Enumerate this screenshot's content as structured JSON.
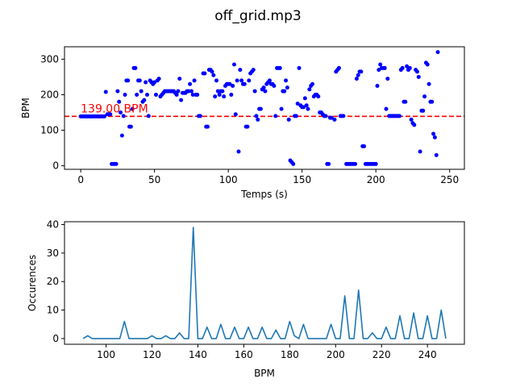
{
  "figure": {
    "title": "off_grid.mp3"
  },
  "chart_data": [
    {
      "type": "scatter",
      "xlabel": "Temps (s)",
      "ylabel": "BPM",
      "xlim": [
        -11,
        260
      ],
      "ylim": [
        -10,
        335
      ],
      "xticks": [
        0,
        50,
        100,
        150,
        200,
        250
      ],
      "yticks": [
        0,
        100,
        200,
        300
      ],
      "marker_color": "#0000ff",
      "reference_line": {
        "y": 139,
        "color": "#ff0000",
        "style": "dashed",
        "label": "139.00 BPM"
      },
      "points": [
        [
          0,
          139
        ],
        [
          1,
          139
        ],
        [
          2,
          139
        ],
        [
          3,
          139
        ],
        [
          4,
          139
        ],
        [
          5,
          139
        ],
        [
          6,
          139
        ],
        [
          7,
          139
        ],
        [
          8,
          139
        ],
        [
          9,
          139
        ],
        [
          10,
          139
        ],
        [
          11,
          139
        ],
        [
          12,
          139
        ],
        [
          13,
          139
        ],
        [
          14,
          139
        ],
        [
          15,
          139
        ],
        [
          16,
          139
        ],
        [
          17,
          208
        ],
        [
          18,
          145
        ],
        [
          19,
          145
        ],
        [
          20,
          145
        ],
        [
          21,
          5
        ],
        [
          22,
          5
        ],
        [
          23,
          5
        ],
        [
          24,
          5
        ],
        [
          25,
          210
        ],
        [
          26,
          180
        ],
        [
          27,
          150
        ],
        [
          28,
          85
        ],
        [
          29,
          140
        ],
        [
          30,
          200
        ],
        [
          31,
          240
        ],
        [
          32,
          240
        ],
        [
          33,
          110
        ],
        [
          34,
          110
        ],
        [
          35,
          160
        ],
        [
          36,
          275
        ],
        [
          37,
          275
        ],
        [
          38,
          200
        ],
        [
          39,
          240
        ],
        [
          40,
          240
        ],
        [
          41,
          210
        ],
        [
          42,
          180
        ],
        [
          43,
          185
        ],
        [
          44,
          235
        ],
        [
          45,
          200
        ],
        [
          46,
          140
        ],
        [
          47,
          240
        ],
        [
          48,
          235
        ],
        [
          49,
          230
        ],
        [
          50,
          235
        ],
        [
          51,
          200
        ],
        [
          52,
          240
        ],
        [
          53,
          245
        ],
        [
          54,
          195
        ],
        [
          55,
          200
        ],
        [
          56,
          205
        ],
        [
          57,
          210
        ],
        [
          58,
          210
        ],
        [
          59,
          210
        ],
        [
          60,
          210
        ],
        [
          61,
          210
        ],
        [
          62,
          210
        ],
        [
          63,
          210
        ],
        [
          64,
          205
        ],
        [
          65,
          200
        ],
        [
          66,
          210
        ],
        [
          67,
          245
        ],
        [
          68,
          185
        ],
        [
          69,
          205
        ],
        [
          70,
          205
        ],
        [
          71,
          205
        ],
        [
          72,
          210
        ],
        [
          73,
          210
        ],
        [
          74,
          230
        ],
        [
          75,
          210
        ],
        [
          76,
          200
        ],
        [
          77,
          240
        ],
        [
          78,
          200
        ],
        [
          79,
          200
        ],
        [
          80,
          140
        ],
        [
          81,
          140
        ],
        [
          83,
          260
        ],
        [
          84,
          260
        ],
        [
          85,
          110
        ],
        [
          86,
          110
        ],
        [
          87,
          270
        ],
        [
          88,
          270
        ],
        [
          89,
          265
        ],
        [
          90,
          255
        ],
        [
          91,
          195
        ],
        [
          92,
          240
        ],
        [
          93,
          210
        ],
        [
          94,
          200
        ],
        [
          95,
          210
        ],
        [
          96,
          210
        ],
        [
          97,
          195
        ],
        [
          98,
          225
        ],
        [
          99,
          230
        ],
        [
          100,
          230
        ],
        [
          101,
          230
        ],
        [
          102,
          200
        ],
        [
          103,
          225
        ],
        [
          104,
          285
        ],
        [
          105,
          145
        ],
        [
          106,
          240
        ],
        [
          107,
          40
        ],
        [
          108,
          270
        ],
        [
          109,
          240
        ],
        [
          110,
          230
        ],
        [
          111,
          230
        ],
        [
          112,
          110
        ],
        [
          113,
          110
        ],
        [
          114,
          240
        ],
        [
          115,
          260
        ],
        [
          116,
          265
        ],
        [
          117,
          270
        ],
        [
          118,
          210
        ],
        [
          119,
          140
        ],
        [
          120,
          130
        ],
        [
          121,
          160
        ],
        [
          122,
          160
        ],
        [
          123,
          215
        ],
        [
          124,
          220
        ],
        [
          125,
          210
        ],
        [
          126,
          230
        ],
        [
          127,
          235
        ],
        [
          128,
          240
        ],
        [
          129,
          230
        ],
        [
          130,
          230
        ],
        [
          131,
          225
        ],
        [
          132,
          140
        ],
        [
          133,
          275
        ],
        [
          134,
          275
        ],
        [
          135,
          275
        ],
        [
          136,
          160
        ],
        [
          137,
          210
        ],
        [
          138,
          210
        ],
        [
          139,
          240
        ],
        [
          140,
          220
        ],
        [
          141,
          130
        ],
        [
          142,
          15
        ],
        [
          143,
          10
        ],
        [
          144,
          5
        ],
        [
          145,
          140
        ],
        [
          146,
          140
        ],
        [
          147,
          175
        ],
        [
          148,
          275
        ],
        [
          149,
          170
        ],
        [
          150,
          165
        ],
        [
          151,
          165
        ],
        [
          152,
          190
        ],
        [
          153,
          170
        ],
        [
          154,
          160
        ],
        [
          155,
          215
        ],
        [
          156,
          225
        ],
        [
          157,
          230
        ],
        [
          158,
          195
        ],
        [
          159,
          200
        ],
        [
          160,
          200
        ],
        [
          161,
          195
        ],
        [
          162,
          150
        ],
        [
          163,
          150
        ],
        [
          164,
          145
        ],
        [
          165,
          140
        ],
        [
          166,
          140
        ],
        [
          167,
          5
        ],
        [
          168,
          5
        ],
        [
          169,
          135
        ],
        [
          170,
          135
        ],
        [
          172,
          130
        ],
        [
          173,
          265
        ],
        [
          174,
          270
        ],
        [
          175,
          275
        ],
        [
          176,
          140
        ],
        [
          177,
          140
        ],
        [
          178,
          140
        ],
        [
          180,
          5
        ],
        [
          181,
          5
        ],
        [
          182,
          5
        ],
        [
          183,
          5
        ],
        [
          184,
          5
        ],
        [
          185,
          5
        ],
        [
          186,
          5
        ],
        [
          187,
          245
        ],
        [
          188,
          255
        ],
        [
          189,
          265
        ],
        [
          190,
          265
        ],
        [
          191,
          55
        ],
        [
          192,
          55
        ],
        [
          193,
          5
        ],
        [
          194,
          5
        ],
        [
          195,
          5
        ],
        [
          196,
          5
        ],
        [
          197,
          5
        ],
        [
          198,
          5
        ],
        [
          199,
          5
        ],
        [
          200,
          5
        ],
        [
          201,
          225
        ],
        [
          202,
          270
        ],
        [
          203,
          285
        ],
        [
          204,
          275
        ],
        [
          205,
          275
        ],
        [
          206,
          275
        ],
        [
          207,
          160
        ],
        [
          208,
          245
        ],
        [
          209,
          140
        ],
        [
          210,
          140
        ],
        [
          211,
          140
        ],
        [
          212,
          140
        ],
        [
          213,
          140
        ],
        [
          214,
          140
        ],
        [
          215,
          140
        ],
        [
          216,
          140
        ],
        [
          217,
          270
        ],
        [
          218,
          275
        ],
        [
          219,
          180
        ],
        [
          220,
          180
        ],
        [
          221,
          280
        ],
        [
          222,
          270
        ],
        [
          223,
          275
        ],
        [
          224,
          130
        ],
        [
          225,
          120
        ],
        [
          226,
          115
        ],
        [
          227,
          270
        ],
        [
          228,
          265
        ],
        [
          229,
          250
        ],
        [
          230,
          40
        ],
        [
          231,
          155
        ],
        [
          232,
          155
        ],
        [
          233,
          195
        ],
        [
          234,
          290
        ],
        [
          235,
          285
        ],
        [
          236,
          230
        ],
        [
          237,
          180
        ],
        [
          238,
          180
        ],
        [
          239,
          90
        ],
        [
          240,
          80
        ],
        [
          241,
          30
        ],
        [
          242,
          320
        ]
      ]
    },
    {
      "type": "line",
      "xlabel": "BPM",
      "ylabel": "Occurences",
      "xlim": [
        81.9,
        256.1
      ],
      "ylim": [
        -2.0,
        41.0
      ],
      "xticks": [
        100,
        120,
        140,
        160,
        180,
        200,
        220,
        240
      ],
      "yticks": [
        0,
        10,
        20,
        30,
        40
      ],
      "line_color": "#1f77b4",
      "bins_start": 90,
      "bins_step": 2,
      "counts": [
        0,
        1,
        0,
        0,
        0,
        0,
        0,
        0,
        0,
        6,
        0,
        0,
        0,
        0,
        0,
        1,
        0,
        0,
        1,
        0,
        0,
        2,
        0,
        0,
        39,
        0,
        0,
        4,
        0,
        0,
        5,
        0,
        0,
        4,
        0,
        0,
        4,
        0,
        0,
        4,
        0,
        0,
        3,
        0,
        0,
        6,
        1,
        0,
        5,
        0,
        0,
        0,
        0,
        0,
        5,
        0,
        0,
        15,
        0,
        0,
        17,
        0,
        0,
        2,
        0,
        0,
        4,
        0,
        0,
        8,
        0,
        0,
        9,
        0,
        0,
        8,
        0,
        0,
        10,
        0
      ]
    }
  ]
}
